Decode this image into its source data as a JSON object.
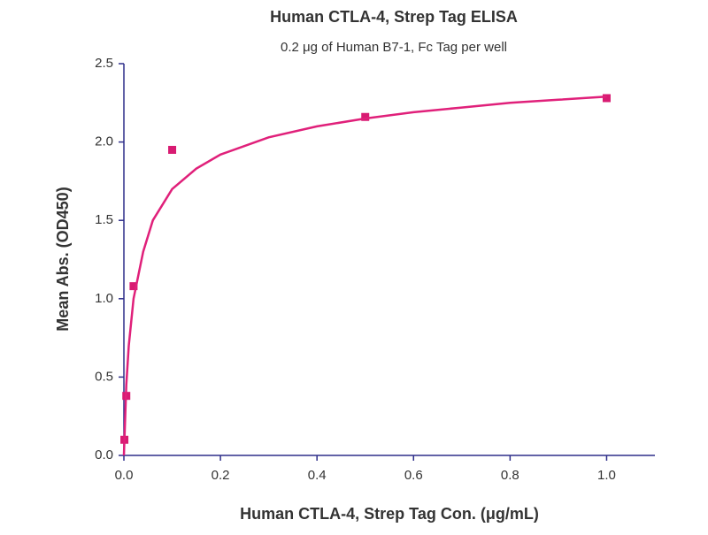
{
  "chart_data": {
    "type": "scatter",
    "title": "Human CTLA-4, Strep Tag ELISA",
    "subtitle": "0.2 μg of Human B7-1, Fc Tag per well",
    "x_label": "Human CTLA-4, Strep Tag Con. (μg/mL)",
    "y_label": "Mean Abs. (OD450)",
    "axis_color": "#2e2e8a",
    "series": [
      {
        "kind": "points",
        "color": "#d81b72",
        "x": [
          0.001,
          0.005,
          0.02,
          0.1,
          0.5,
          1.0
        ],
        "values": [
          0.1,
          0.38,
          1.08,
          1.95,
          2.16,
          2.28
        ]
      },
      {
        "kind": "line",
        "color": "#e0207a",
        "x": [
          0,
          0.005,
          0.01,
          0.02,
          0.04,
          0.06,
          0.1,
          0.15,
          0.2,
          0.3,
          0.4,
          0.5,
          0.6,
          0.7,
          0.8,
          0.9,
          1.0
        ],
        "values": [
          0,
          0.45,
          0.7,
          1.0,
          1.3,
          1.5,
          1.7,
          1.83,
          1.92,
          2.03,
          2.1,
          2.15,
          2.19,
          2.22,
          2.25,
          2.27,
          2.29
        ]
      }
    ],
    "xlim": [
      0,
      1.1
    ],
    "ylim": [
      0,
      2.5
    ],
    "xticks": [
      {
        "value": 0,
        "label": "0.0"
      },
      0.2,
      0.4,
      0.6,
      0.8,
      {
        "value": 1,
        "label": "1.0"
      }
    ],
    "yticks": [
      {
        "value": 0,
        "label": "0.0"
      },
      0.5,
      {
        "value": 1,
        "label": "1.0"
      },
      1.5,
      {
        "value": 2,
        "label": "2.0"
      },
      2.5
    ]
  }
}
